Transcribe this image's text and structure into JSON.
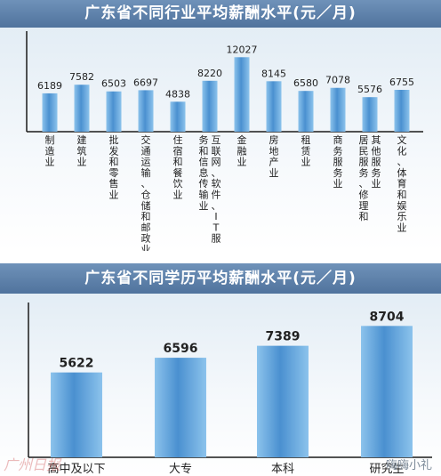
{
  "chart_data": [
    {
      "type": "bar",
      "title": "广东省不同行业平均薪酬水平(元／月)",
      "categories": [
        "制造业",
        "建筑业",
        "批发和零售业",
        "交通运输、仓储和邮政业",
        "住宿和餐饮业",
        "信息传输、软件和信息技术服务业",
        "金融业",
        "房地产业",
        "租赁业",
        "商务服务业",
        "居民服务、修理和其他服务业",
        "文化、体育和娱乐业"
      ],
      "category_labels": [
        "制造业",
        "建筑业",
        "批发和零售业",
        "交通运输、仓储和邮政业",
        "住宿和餐饮业",
        "务和信息传输业 互联网、软件、IT服",
        "金融业",
        "房地产业",
        "租赁业",
        "商务服务业",
        "居民服务、修理和 其他服务业",
        "文化、体育和娱乐业"
      ],
      "values": [
        6189,
        7582,
        6503,
        6697,
        4838,
        8220,
        12027,
        8145,
        6580,
        7078,
        5576,
        6755
      ],
      "value_labels": [
        "6189",
        "7582",
        "6503",
        "6697",
        "4838",
        "8220",
        "12027",
        "8145",
        "6580",
        "7078",
        "5576",
        "6755"
      ],
      "ylim": [
        0,
        12500
      ],
      "grid": false,
      "bar_color": "#5f9fd6"
    },
    {
      "type": "bar",
      "title": "广东省不同学历平均薪酬水平(元／月)",
      "categories": [
        "高中及以下",
        "大专",
        "本科",
        "研究生"
      ],
      "values": [
        5622,
        6596,
        7389,
        8704
      ],
      "value_labels": [
        "5622",
        "6596",
        "7389",
        "8704"
      ],
      "ylim": [
        0,
        8900
      ],
      "grid": false,
      "bar_color": "#5f9fd6"
    }
  ],
  "watermark": "嗨嗨小礼",
  "source_logo": "广州日报"
}
